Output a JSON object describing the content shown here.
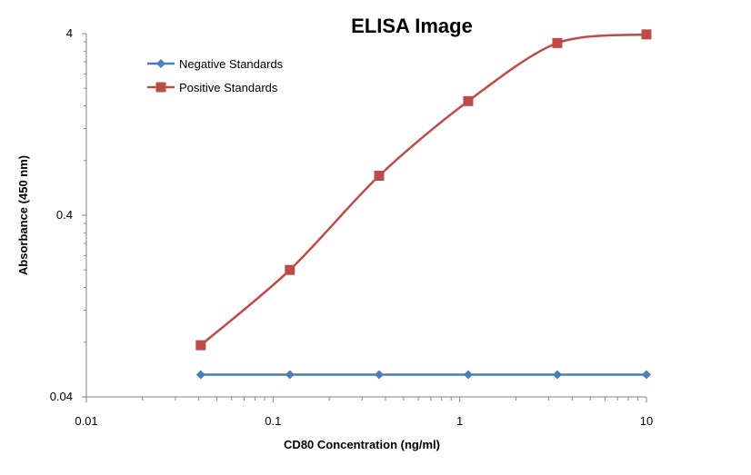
{
  "chart_data": {
    "type": "line",
    "title": "ELISA Image",
    "xlabel": "CD80 Concentration (ng/ml)",
    "ylabel": "Absorbance (450 nm)",
    "x_scale": "log",
    "y_scale": "log",
    "xlim": [
      0.01,
      10
    ],
    "ylim": [
      0.04,
      4
    ],
    "x_ticks": [
      0.01,
      0.1,
      1,
      10
    ],
    "x_tick_labels": [
      "0.01",
      "0.1",
      "1",
      "10"
    ],
    "y_ticks": [
      0.04,
      0.4,
      4
    ],
    "y_tick_labels": [
      "0.04",
      "0.4",
      "4"
    ],
    "grid": false,
    "legend_position": "top-left",
    "x": [
      0.041,
      0.123,
      0.37,
      1.11,
      3.33,
      10
    ],
    "series": [
      {
        "name": "Negative Standards",
        "values": [
          0.053,
          0.053,
          0.053,
          0.053,
          0.053,
          0.053
        ],
        "color": "#4A7EBB",
        "marker": "diamond",
        "smooth": false
      },
      {
        "name": "Positive Standards",
        "values": [
          0.077,
          0.2,
          0.66,
          1.7,
          3.55,
          3.96
        ],
        "color": "#BE4B48",
        "marker": "square",
        "smooth": true
      }
    ]
  }
}
